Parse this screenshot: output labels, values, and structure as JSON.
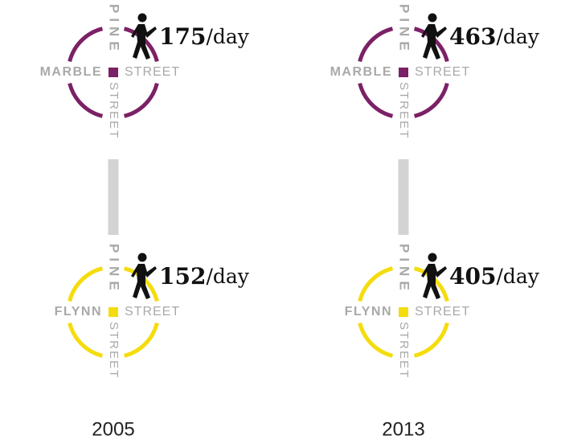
{
  "panels": [
    {
      "year": "2005",
      "intersections": [
        {
          "main_street": "PINE",
          "main_street_suffix": "STREET",
          "cross_street": "MARBLE",
          "cross_street_suffix": "STREET",
          "count": 175,
          "unit": "/day",
          "color": "#7b2166"
        },
        {
          "main_street": "PINE",
          "main_street_suffix": "STREET",
          "cross_street": "FLYNN",
          "cross_street_suffix": "STREET",
          "count": 152,
          "unit": "/day",
          "color": "#f5dc0c"
        }
      ]
    },
    {
      "year": "2013",
      "intersections": [
        {
          "main_street": "PINE",
          "main_street_suffix": "STREET",
          "cross_street": "MARBLE",
          "cross_street_suffix": "STREET",
          "count": 463,
          "unit": "/day",
          "color": "#7b2166"
        },
        {
          "main_street": "PINE",
          "main_street_suffix": "STREET",
          "cross_street": "FLYNN",
          "cross_street_suffix": "STREET",
          "count": 405,
          "unit": "/day",
          "color": "#f5dc0c"
        }
      ]
    }
  ]
}
